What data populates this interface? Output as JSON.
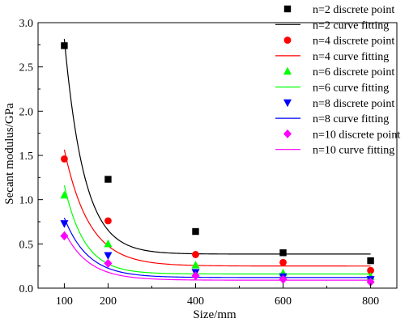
{
  "chart_data": {
    "type": "scatter",
    "xlabel": "Size/mm",
    "ylabel": "Secant modulus/GPa",
    "xlim": [
      40,
      860
    ],
    "ylim": [
      0,
      3.0
    ],
    "xticks": [
      100,
      200,
      400,
      600,
      800
    ],
    "yticks": [
      0.0,
      0.5,
      1.0,
      1.5,
      2.0,
      2.5,
      3.0
    ],
    "xtick_labels": [
      "100",
      "200",
      "400",
      "600",
      "800"
    ],
    "ytick_labels": [
      "0.0",
      "0.5",
      "1.0",
      "1.5",
      "2.0",
      "2.5",
      "3.0"
    ],
    "grid": false,
    "legend_position": "top-right",
    "x": [
      100,
      200,
      400,
      600,
      800
    ],
    "series": [
      {
        "point_label": "n=2 discrete point",
        "curve_label": "n=2 curve fitting",
        "marker": "square",
        "marker_color": "#000000",
        "line_color": "#000000",
        "values": [
          2.74,
          1.23,
          0.64,
          0.4,
          0.31
        ],
        "fit": {
          "y0": 0.385,
          "A": 21.9,
          "t": 45.5
        }
      },
      {
        "point_label": "n=4 discrete point",
        "curve_label": "n=4 curve fitting",
        "marker": "circle",
        "marker_color": "#ff0000",
        "line_color": "#ff0000",
        "values": [
          1.46,
          0.76,
          0.38,
          0.29,
          0.2
        ],
        "fit": {
          "y0": 0.25,
          "A": 7.6,
          "t": 57.0
        }
      },
      {
        "point_label": "n=6 discrete point",
        "curve_label": "n=6 curve fitting",
        "marker": "triangle-up",
        "marker_color": "#00ff00",
        "line_color": "#00ff00",
        "values": [
          1.05,
          0.5,
          0.26,
          0.17,
          0.13
        ],
        "fit": {
          "y0": 0.16,
          "A": 8.8,
          "t": 46.0
        }
      },
      {
        "point_label": "n=8 discrete point",
        "curve_label": "n=8 curve fitting",
        "marker": "triangle-down",
        "marker_color": "#0000ff",
        "line_color": "#0000ff",
        "values": [
          0.73,
          0.37,
          0.18,
          0.13,
          0.1
        ],
        "fit": {
          "y0": 0.12,
          "A": 4.3,
          "t": 54.0
        }
      },
      {
        "point_label": "n=10 discrete point",
        "curve_label": "n=10 curve fitting",
        "marker": "diamond",
        "marker_color": "#ff00ff",
        "line_color": "#ff00ff",
        "values": [
          0.59,
          0.28,
          0.14,
          0.1,
          0.07
        ],
        "fit": {
          "y0": 0.09,
          "A": 3.4,
          "t": 55.0
        }
      }
    ]
  }
}
